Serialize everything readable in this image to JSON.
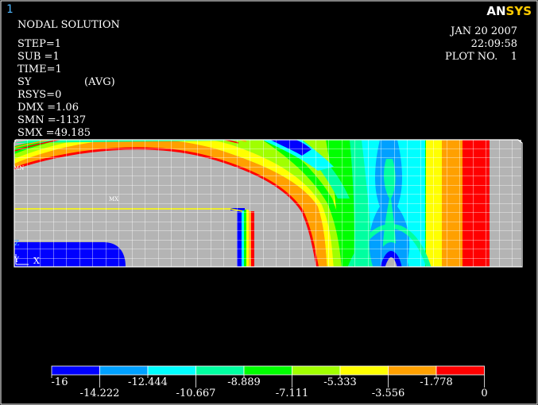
{
  "window": {
    "number": "1"
  },
  "logo": {
    "an": "AN",
    "sys": "SYS"
  },
  "solution_info": {
    "title": "NODAL SOLUTION",
    "step": "STEP=1",
    "sub": "SUB =1",
    "time": "TIME=1",
    "component": "SY",
    "avg": "(AVG)",
    "rsys": "RSYS=0",
    "dmx": "DMX =1.06",
    "smn": "SMN =-1137",
    "smx": "SMX =49.185"
  },
  "plot_info": {
    "date": "JAN 20 2007",
    "time": "22:09:58",
    "plot_no": "PLOT NO.    1"
  },
  "model_labels": {
    "mx": "MX",
    "mn": "MN",
    "axis_y": "Y",
    "axis_x": "X",
    "axis_z": "Z"
  },
  "legend": {
    "colors": [
      "#0000ff",
      "#00a0ff",
      "#00ffff",
      "#00ffa0",
      "#00ff00",
      "#a0ff00",
      "#ffff00",
      "#ffa000",
      "#ff0000"
    ],
    "labels_top": [
      "-16",
      "-12.444",
      "-8.889",
      "-5.333",
      "-1.778"
    ],
    "labels_bottom": [
      "-14.222",
      "-10.667",
      "-7.111",
      "-3.556",
      "0"
    ]
  },
  "colors": {
    "background": "#000000",
    "model_gray": "#b4b4b4",
    "mesh": "#ffffff"
  }
}
